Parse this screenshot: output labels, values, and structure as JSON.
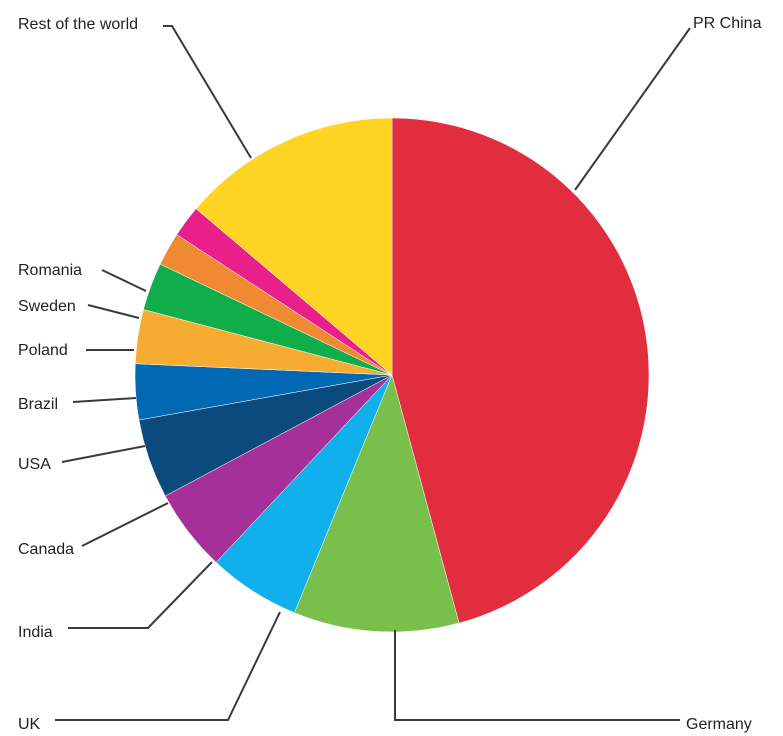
{
  "chart_data": {
    "type": "pie",
    "title": "",
    "categories": [
      "PR China",
      "Germany",
      "UK",
      "India",
      "Canada",
      "USA",
      "Brazil",
      "Poland",
      "Sweden",
      "Romania",
      "Rest of the world"
    ],
    "values": [
      45.8,
      10.4,
      5.8,
      5.2,
      5.0,
      3.5,
      3.4,
      3.0,
      2.1,
      2.0,
      13.8
    ],
    "unit": "%",
    "start_angle_deg": 0,
    "direction": "clockwise",
    "legend": "none",
    "colors": [
      "#e12d3e",
      "#78c04b",
      "#0fb0ec",
      "#a6309a",
      "#0a4a7c",
      "#0168b3",
      "#f6ac31",
      "#12ad4b",
      "#f08a32",
      "#e91f8c",
      "#ffd422"
    ]
  }
}
